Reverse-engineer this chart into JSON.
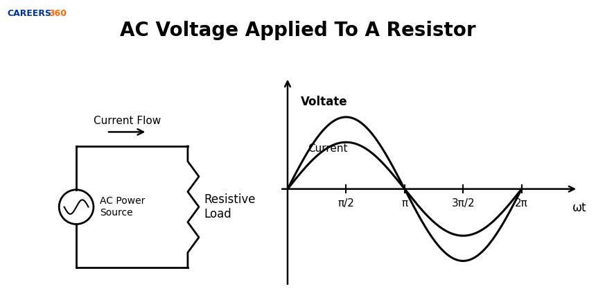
{
  "title": "AC Voltage Applied To A Resistor",
  "title_fontsize": 20,
  "title_fontweight": "bold",
  "bg_color": "#ffffff",
  "text_color": "#000000",
  "careers360_text": "CAREERS",
  "careers360_num": "360",
  "careers360_color_text": "#003399",
  "careers360_color_num": "#ff6600",
  "circuit_label_current": "Current Flow",
  "circuit_label_ac": "AC Power\nSource",
  "circuit_label_resistive": "Resistive\nLoad",
  "graph_label_voltage": "Voltate",
  "graph_label_current": "Current",
  "graph_xlabel": "ωt",
  "voltage_amplitude": 1.0,
  "current_amplitude": 0.65,
  "line_color": "#000000",
  "line_width": 2.2,
  "tick_labels": [
    "π/2",
    "π",
    "3π/2",
    "2π"
  ]
}
